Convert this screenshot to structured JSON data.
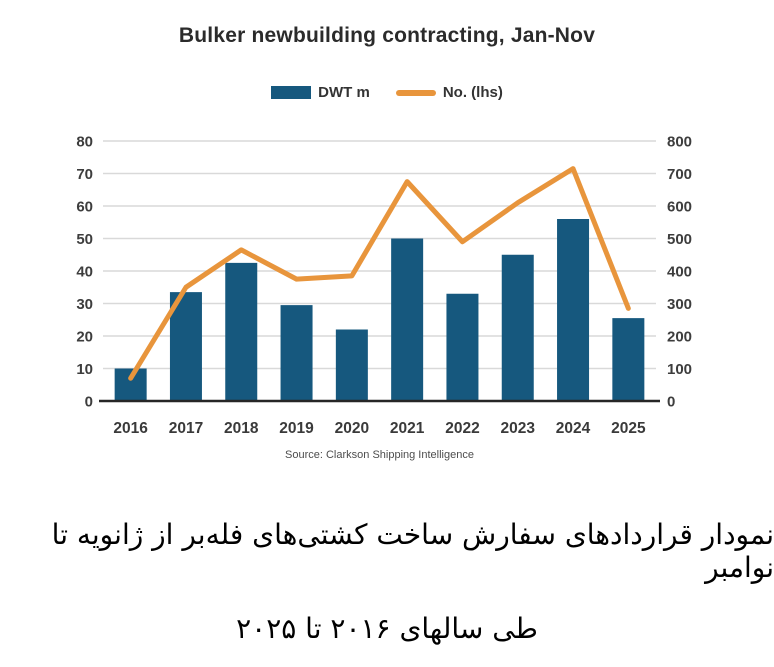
{
  "title": "Bulker newbuilding contracting, Jan-Nov",
  "legend": {
    "bar_label": "DWT m",
    "line_label": "No. (lhs)"
  },
  "source": "Source: Clarkson Shipping Intelligence",
  "caption": {
    "line1": "نمودار قراردادهای سفارش ساخت کشتی‌های فله‌بر از ژانویه تا نوامبر",
    "line2": "طی سالهای ۲۰۱۶ تا ۲۰۲۵"
  },
  "colors": {
    "bar": "#16587e",
    "line": "#e8953c",
    "grid": "#d9d9d9",
    "axis_line": "#262626",
    "tick_text": "#3d3d3d"
  },
  "chart_data": {
    "type": "bar+line combo",
    "title": "Bulker newbuilding contracting, Jan-Nov",
    "categories": [
      "2016",
      "2017",
      "2018",
      "2019",
      "2020",
      "2021",
      "2022",
      "2023",
      "2024",
      "2025"
    ],
    "series": [
      {
        "name": "DWT m",
        "type": "bar",
        "axis": "left",
        "color": "#16587e",
        "values": [
          10,
          33.5,
          42.5,
          29.5,
          22,
          50,
          33,
          45,
          56,
          25.5
        ]
      },
      {
        "name": "No. (lhs)",
        "type": "line",
        "axis": "right",
        "color": "#e8953c",
        "values": [
          70,
          350,
          465,
          375,
          385,
          675,
          490,
          610,
          715,
          285
        ]
      }
    ],
    "left_axis": {
      "min": 0,
      "max": 80,
      "step": 10,
      "ticks": [
        0,
        10,
        20,
        30,
        40,
        50,
        60,
        70,
        80
      ]
    },
    "right_axis": {
      "min": 0,
      "max": 800,
      "step": 100,
      "ticks": [
        0,
        100,
        200,
        300,
        400,
        500,
        600,
        700,
        800
      ]
    },
    "grid": true,
    "legend_position": "top",
    "source": "Source: Clarkson Shipping Intelligence"
  }
}
